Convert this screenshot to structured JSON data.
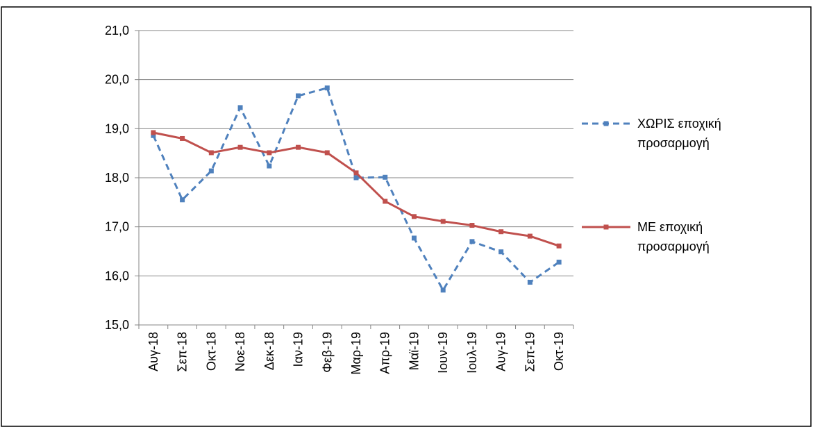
{
  "chart_data": {
    "type": "line",
    "categories": [
      "Αυγ-18",
      "Σεπ-18",
      "Οκτ-18",
      "Νοε-18",
      "Δεκ-18",
      "Ιαν-19",
      "Φεβ-19",
      "Μαρ-19",
      "Απρ-19",
      "Μαϊ-19",
      "Ιουν-19",
      "Ιουλ-19",
      "Αυγ-19",
      "Σεπ-19",
      "Οκτ-19"
    ],
    "series": [
      {
        "name": "ΧΩΡΙΣ εποχική προσαρμογή",
        "color": "#4f81bd",
        "dashed": true,
        "values": [
          18.86,
          17.55,
          18.14,
          19.43,
          18.24,
          19.67,
          19.83,
          18.0,
          18.01,
          16.77,
          15.71,
          16.7,
          16.49,
          15.87,
          16.28
        ]
      },
      {
        "name": "ΜΕ εποχική προσαρμογή",
        "color": "#c0504d",
        "dashed": false,
        "values": [
          18.92,
          18.8,
          18.51,
          18.62,
          18.51,
          18.62,
          18.51,
          18.1,
          17.52,
          17.21,
          17.11,
          17.03,
          16.9,
          16.81,
          16.61
        ]
      }
    ],
    "ylim": [
      15,
      21
    ],
    "yticks": [
      {
        "value": 15,
        "label": "15,0"
      },
      {
        "value": 16,
        "label": "16,0"
      },
      {
        "value": 17,
        "label": "17,0"
      },
      {
        "value": 18,
        "label": "18,0"
      },
      {
        "value": 19,
        "label": "19,0"
      },
      {
        "value": 20,
        "label": "20,0"
      },
      {
        "value": 21,
        "label": "21,0"
      }
    ],
    "grid": true,
    "legend": "right"
  }
}
